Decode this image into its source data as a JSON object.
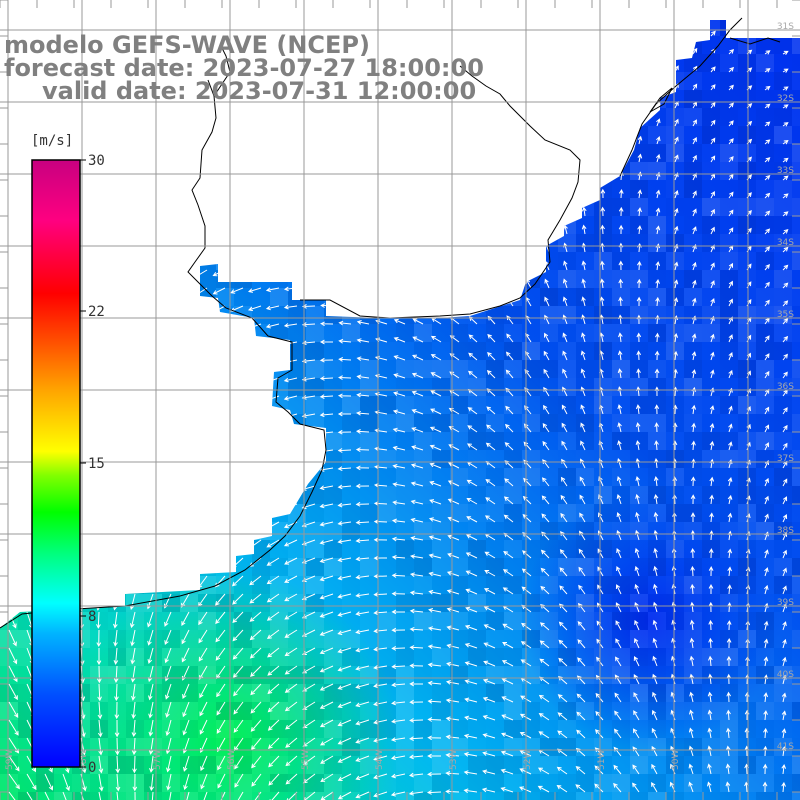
{
  "title": {
    "line1": "modelo GEFS-WAVE (NCEP)",
    "line2": "forecast date: 2023-07-27 18:00:00",
    "line3": "valid date: 2023-07-31 12:00:00"
  },
  "colorbar": {
    "unit": "[m/s]",
    "ticks": [
      "30",
      "22",
      "15",
      "8",
      "0"
    ],
    "colors": [
      "#0000ff",
      "#0050ff",
      "#00b4ff",
      "#00ffff",
      "#00ff80",
      "#00ff00",
      "#80ff00",
      "#ffff00",
      "#ffa500",
      "#ff5000",
      "#ff0000",
      "#ff0080",
      "#c80080"
    ]
  },
  "map": {
    "lat_labels": [
      "31S",
      "32S",
      "33S",
      "34S",
      "35S",
      "36S",
      "37S",
      "38S",
      "39S",
      "40S",
      "41S"
    ],
    "lon_labels": [
      "59W",
      "58W",
      "57W",
      "56W",
      "55W",
      "54W",
      "53W",
      "52W",
      "51W",
      "50W"
    ],
    "land_color": "#ffffff",
    "coast_color": "#000000",
    "grid_color": "#999999",
    "arrow_color": "#ffffff"
  }
}
